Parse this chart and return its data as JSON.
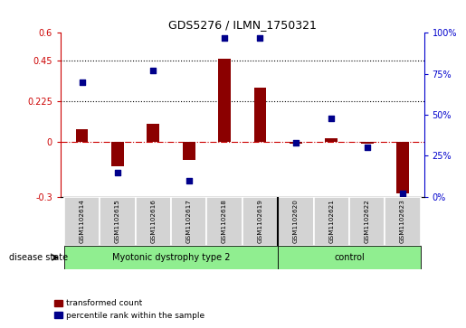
{
  "title": "GDS5276 / ILMN_1750321",
  "samples": [
    "GSM1102614",
    "GSM1102615",
    "GSM1102616",
    "GSM1102617",
    "GSM1102618",
    "GSM1102619",
    "GSM1102620",
    "GSM1102621",
    "GSM1102622",
    "GSM1102623"
  ],
  "red_values": [
    0.07,
    -0.13,
    0.1,
    -0.1,
    0.46,
    0.3,
    -0.01,
    0.02,
    -0.01,
    -0.28
  ],
  "blue_values": [
    70,
    15,
    77,
    10,
    97,
    97,
    33,
    48,
    30,
    2
  ],
  "ylim_left": [
    -0.3,
    0.6
  ],
  "ylim_right": [
    0,
    100
  ],
  "yticks_left": [
    -0.3,
    0.0,
    0.225,
    0.45,
    0.6
  ],
  "yticks_right": [
    0,
    25,
    50,
    75,
    100
  ],
  "ytick_labels_left": [
    "-0.3",
    "0",
    "0.225",
    "0.45",
    "0.6"
  ],
  "ytick_labels_right": [
    "0%",
    "25%",
    "50%",
    "75%",
    "100%"
  ],
  "hlines": [
    0.225,
    0.45
  ],
  "groups": [
    {
      "label": "Myotonic dystrophy type 2",
      "start": 0,
      "end": 5,
      "color": "#90EE90"
    },
    {
      "label": "control",
      "start": 6,
      "end": 9,
      "color": "#90EE90"
    }
  ],
  "group_separator": 5.5,
  "disease_state_label": "disease state",
  "legend_red": "transformed count",
  "legend_blue": "percentile rank within the sample",
  "bar_color": "#8B0000",
  "dot_color": "#00008B",
  "zero_line_color": "#CC0000",
  "tick_label_color_left": "#CC0000",
  "tick_label_color_right": "#0000CC",
  "bar_width": 0.35
}
